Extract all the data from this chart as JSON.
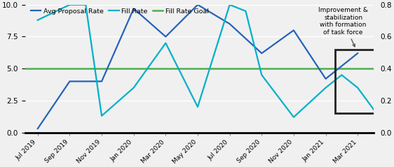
{
  "x_labels": [
    "Jul 2019",
    "Sep 2019",
    "Nov 2019",
    "Jan 2020",
    "Mar 2020",
    "May 2020",
    "Jul 2020",
    "Sep 2020",
    "Nov 2020",
    "Jan 2021",
    "Mar 2021"
  ],
  "avg_proposal_rate_x": [
    0,
    1,
    2,
    3,
    4,
    5,
    6,
    7,
    8,
    9,
    10
  ],
  "avg_proposal_rate_y": [
    0.3,
    4.0,
    4.0,
    9.7,
    7.5,
    10.0,
    8.5,
    6.2,
    8.0,
    4.2,
    6.2
  ],
  "fill_rate_x": [
    0,
    1,
    1.5,
    2,
    3,
    4,
    5,
    6,
    6.5,
    7,
    8,
    9,
    9.5,
    10,
    10.5
  ],
  "fill_rate_y": [
    8.8,
    10.0,
    10.0,
    1.3,
    3.5,
    7.0,
    2.0,
    10.0,
    9.5,
    4.5,
    1.2,
    3.5,
    4.5,
    3.5,
    1.8
  ],
  "fill_rate_goal": 5.0,
  "avg_proposal_color": "#2563b8",
  "fill_rate_color": "#00b0c8",
  "fill_rate_goal_color": "#4caf50",
  "background_color": "#f0f0f0",
  "ylim": [
    0,
    10
  ],
  "y2lim": [
    0,
    0.8
  ],
  "annotation_text": "Improvement &\nstabilization\nwith formation\nof task force",
  "legend_labels": [
    "Avg Proposal Rate",
    "Fill Rate",
    "Fill Rate Goal"
  ]
}
